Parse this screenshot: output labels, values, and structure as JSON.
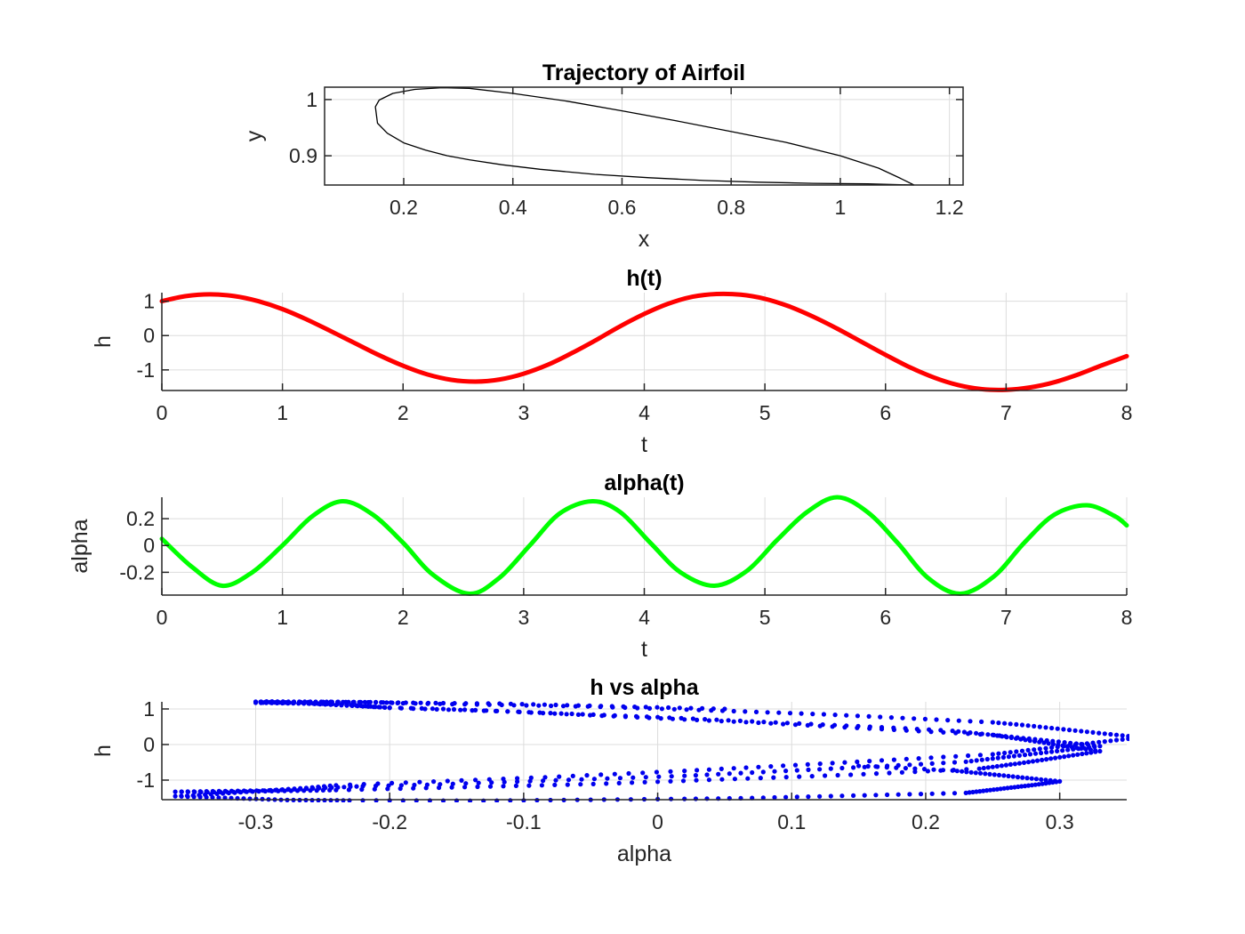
{
  "chart_data": [
    {
      "id": "airfoil",
      "type": "line",
      "title": "Trajectory of Airfoil",
      "xlabel": "x",
      "ylabel": "y",
      "xlim": [
        0.055,
        1.225
      ],
      "ylim": [
        0.848,
        1.022
      ],
      "xticks": [
        0.2,
        0.4,
        0.6,
        0.8,
        1,
        1.2
      ],
      "xticklabels": [
        "0.2",
        "0.4",
        "0.6",
        "0.8",
        "1",
        "1.2"
      ],
      "yticks": [
        0.9,
        1
      ],
      "yticklabels": [
        "0.9",
        "1"
      ],
      "grid": true,
      "box": true,
      "series": [
        {
          "color": "#000000",
          "line_width": 1.3,
          "x": [
            1.135,
            1.05,
            0.95,
            0.85,
            0.75,
            0.65,
            0.55,
            0.45,
            0.38,
            0.32,
            0.28,
            0.24,
            0.2,
            0.17,
            0.152,
            0.148,
            0.155,
            0.18,
            0.22,
            0.27,
            0.32,
            0.4,
            0.5,
            0.6,
            0.7,
            0.8,
            0.9,
            1.0,
            1.07,
            1.11,
            1.135
          ],
          "y": [
            0.848,
            0.85,
            0.851,
            0.853,
            0.856,
            0.861,
            0.867,
            0.876,
            0.884,
            0.893,
            0.9,
            0.91,
            0.923,
            0.94,
            0.958,
            0.987,
            0.999,
            1.011,
            1.018,
            1.021,
            1.02,
            1.011,
            0.997,
            0.98,
            0.962,
            0.943,
            0.924,
            0.9,
            0.878,
            0.86,
            0.848
          ]
        }
      ]
    },
    {
      "id": "h_t",
      "type": "line",
      "title": "h(t)",
      "xlabel": "t",
      "ylabel": "h",
      "xlim": [
        0,
        8
      ],
      "ylim": [
        -1.6,
        1.25
      ],
      "xticks": [
        0,
        1,
        2,
        3,
        4,
        5,
        6,
        7,
        8
      ],
      "xticklabels": [
        "0",
        "1",
        "2",
        "3",
        "4",
        "5",
        "6",
        "7",
        "8"
      ],
      "yticks": [
        -1,
        0,
        1
      ],
      "yticklabels": [
        "-1",
        "0",
        "1"
      ],
      "grid": true,
      "series": [
        {
          "color": "#ff0000",
          "line_width": 5,
          "x": [
            0,
            0.2,
            0.4,
            0.6,
            0.8,
            1.0,
            1.2,
            1.4,
            1.6,
            1.8,
            2.0,
            2.2,
            2.4,
            2.6,
            2.8,
            3.0,
            3.2,
            3.4,
            3.6,
            3.8,
            4.0,
            4.2,
            4.4,
            4.6,
            4.8,
            5.0,
            5.2,
            5.4,
            5.6,
            5.8,
            6.0,
            6.2,
            6.4,
            6.6,
            6.8,
            7.0,
            7.2,
            7.4,
            7.6,
            7.8,
            8.0
          ],
          "y": [
            1.0,
            1.15,
            1.2,
            1.15,
            1.0,
            0.77,
            0.47,
            0.13,
            -0.22,
            -0.57,
            -0.88,
            -1.13,
            -1.29,
            -1.34,
            -1.28,
            -1.11,
            -0.85,
            -0.51,
            -0.13,
            0.27,
            0.63,
            0.93,
            1.13,
            1.21,
            1.19,
            1.07,
            0.85,
            0.55,
            0.2,
            -0.18,
            -0.56,
            -0.92,
            -1.22,
            -1.44,
            -1.56,
            -1.58,
            -1.51,
            -1.36,
            -1.13,
            -0.86,
            -0.6
          ]
        }
      ]
    },
    {
      "id": "alpha_t",
      "type": "line",
      "title": "alpha(t)",
      "xlabel": "t",
      "ylabel": "alpha",
      "xlim": [
        0,
        8
      ],
      "ylim": [
        -0.37,
        0.36
      ],
      "xticks": [
        0,
        1,
        2,
        3,
        4,
        5,
        6,
        7,
        8
      ],
      "xticklabels": [
        "0",
        "1",
        "2",
        "3",
        "4",
        "5",
        "6",
        "7",
        "8"
      ],
      "yticks": [
        -0.2,
        0,
        0.2
      ],
      "yticklabels": [
        "-0.2",
        "0",
        "0.2"
      ],
      "grid": true,
      "series": [
        {
          "color": "#00ff00",
          "line_width": 5,
          "x": [
            0,
            0.25,
            0.5,
            0.75,
            1.0,
            1.25,
            1.5,
            1.75,
            2.0,
            2.25,
            2.55,
            2.8,
            3.05,
            3.3,
            3.57,
            3.8,
            4.05,
            4.3,
            4.58,
            4.85,
            5.1,
            5.35,
            5.6,
            5.85,
            6.1,
            6.35,
            6.62,
            6.9,
            7.15,
            7.4,
            7.67,
            7.9,
            8.0
          ],
          "y": [
            0.05,
            -0.16,
            -0.3,
            -0.2,
            0.0,
            0.22,
            0.33,
            0.23,
            0.02,
            -0.22,
            -0.36,
            -0.24,
            0.0,
            0.24,
            0.33,
            0.25,
            0.02,
            -0.2,
            -0.3,
            -0.19,
            0.04,
            0.25,
            0.36,
            0.25,
            0.02,
            -0.24,
            -0.36,
            -0.23,
            0.02,
            0.23,
            0.3,
            0.22,
            0.15
          ]
        }
      ]
    },
    {
      "id": "h_vs_alpha",
      "type": "scatter",
      "title": "h vs alpha",
      "xlabel": "alpha",
      "ylabel": "h",
      "xlim": [
        -0.37,
        0.35
      ],
      "ylim": [
        -1.55,
        1.2
      ],
      "xticks": [
        -0.3,
        -0.2,
        -0.1,
        0,
        0.1,
        0.2,
        0.3
      ],
      "xticklabels": [
        "-0.3",
        "-0.2",
        "-0.1",
        "0",
        "0.1",
        "0.2",
        "0.3"
      ],
      "yticks": [
        -1,
        0,
        1
      ],
      "yticklabels": [
        "-1",
        "0",
        "1"
      ],
      "grid": true,
      "series": [
        {
          "color": "#0000ee",
          "marker_size": 2.6,
          "source": {
            "t_max": 8,
            "points": 800
          }
        }
      ]
    }
  ]
}
